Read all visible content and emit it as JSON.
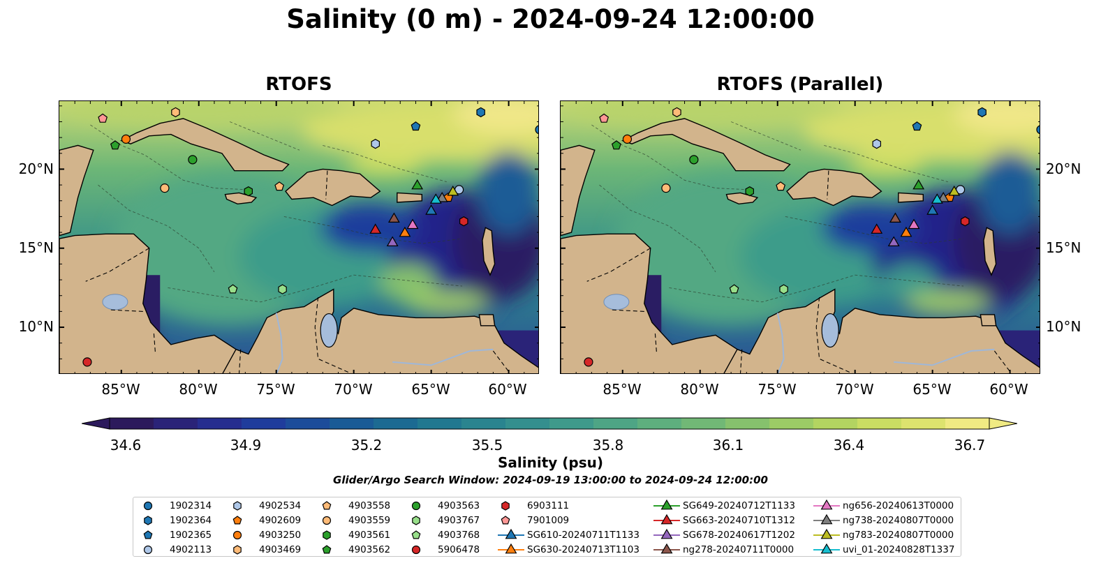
{
  "title": "Salinity (0 m) - 2024-09-24 12:00:00",
  "panels": [
    {
      "id": "left",
      "title": "RTOFS"
    },
    {
      "id": "right",
      "title": "RTOFS (Parallel)"
    }
  ],
  "axes": {
    "lat_ticks": [
      "20°N",
      "15°N",
      "10°N"
    ],
    "lon_ticks": [
      "85°W",
      "80°W",
      "75°W",
      "70°W",
      "65°W",
      "60°W"
    ]
  },
  "colorbar": {
    "label": "Salinity (psu)",
    "ticks": [
      "34.6",
      "34.9",
      "35.2",
      "35.5",
      "35.8",
      "36.1",
      "36.4",
      "36.7"
    ],
    "colors": [
      "#2c1a5c",
      "#2a2378",
      "#262d8f",
      "#1f3c9c",
      "#1c4c9a",
      "#1a5b96",
      "#1c6a92",
      "#217890",
      "#2a848f",
      "#348f8e",
      "#3f9a8b",
      "#4ea585",
      "#5eaf7e",
      "#71b876",
      "#86c16d",
      "#9ccb66",
      "#b3d461",
      "#cadd63",
      "#ddE36e",
      "#f0ea83"
    ]
  },
  "window_label": "Glider/Argo Search Window: 2024-09-19 13:00:00 to 2024-09-24 12:00:00",
  "legend": [
    {
      "label": "1902314",
      "marker": "circle",
      "color": "#1f77b4"
    },
    {
      "label": "1902364",
      "marker": "hexagon",
      "color": "#1f77b4"
    },
    {
      "label": "1902365",
      "marker": "pentagon",
      "color": "#1f77b4"
    },
    {
      "label": "4902113",
      "marker": "circle",
      "color": "#aec7e8"
    },
    {
      "label": "4902534",
      "marker": "hexagon",
      "color": "#aec7e8"
    },
    {
      "label": "4902609",
      "marker": "pentagon",
      "color": "#ff7f0e"
    },
    {
      "label": "4903250",
      "marker": "circle",
      "color": "#ff7f0e"
    },
    {
      "label": "4903469",
      "marker": "hexagon",
      "color": "#ffbb78"
    },
    {
      "label": "4903558",
      "marker": "pentagon",
      "color": "#ffbb78"
    },
    {
      "label": "4903559",
      "marker": "circle",
      "color": "#ffbb78"
    },
    {
      "label": "4903561",
      "marker": "hexagon",
      "color": "#2ca02c"
    },
    {
      "label": "4903562",
      "marker": "pentagon",
      "color": "#2ca02c"
    },
    {
      "label": "4903563",
      "marker": "circle",
      "color": "#2ca02c"
    },
    {
      "label": "4903767",
      "marker": "hexagon",
      "color": "#98df8a"
    },
    {
      "label": "4903768",
      "marker": "pentagon",
      "color": "#98df8a"
    },
    {
      "label": "5906478",
      "marker": "circle",
      "color": "#d62728"
    },
    {
      "label": "6903111",
      "marker": "hexagon",
      "color": "#d62728"
    },
    {
      "label": "7901009",
      "marker": "pentagon",
      "color": "#ff9896"
    },
    {
      "label": "SG610-20240711T1133",
      "marker": "triangle-line",
      "color": "#1f77b4"
    },
    {
      "label": "SG630-20240713T1103",
      "marker": "triangle-line",
      "color": "#ff7f0e"
    },
    {
      "label": "SG649-20240712T1133",
      "marker": "triangle-line",
      "color": "#2ca02c"
    },
    {
      "label": "SG663-20240710T1312",
      "marker": "triangle-line",
      "color": "#d62728"
    },
    {
      "label": "SG678-20240617T1202",
      "marker": "triangle-line",
      "color": "#9467bd"
    },
    {
      "label": "ng278-20240711T0000",
      "marker": "triangle-line",
      "color": "#8c564b"
    },
    {
      "label": "ng656-20240613T0000",
      "marker": "triangle-line",
      "color": "#e377c2"
    },
    {
      "label": "ng738-20240807T0000",
      "marker": "triangle-line",
      "color": "#7f7f7f"
    },
    {
      "label": "ng783-20240807T0000",
      "marker": "triangle-line",
      "color": "#bcbd22"
    },
    {
      "label": "uvi_01-20240828T1337",
      "marker": "triangle-line",
      "color": "#17becf"
    }
  ],
  "map_colors": {
    "land": "#d2b48c",
    "lake": "#a6bddb",
    "deep_low": "#2a1d63",
    "mid": "#2f8c8c",
    "green": "#5fb07a",
    "high": "#f0e788"
  },
  "observations": [
    {
      "id": "1902314",
      "lon": -58.0,
      "lat": 22.5
    },
    {
      "id": "1902364",
      "lon": -61.8,
      "lat": 23.6
    },
    {
      "id": "1902365",
      "lon": -66.0,
      "lat": 22.7
    },
    {
      "id": "4902113",
      "lon": -63.2,
      "lat": 18.7
    },
    {
      "id": "4902534",
      "lon": -68.6,
      "lat": 21.6
    },
    {
      "id": "4902609",
      "lon": -63.9,
      "lat": 18.2
    },
    {
      "id": "4903250",
      "lon": -84.7,
      "lat": 21.9
    },
    {
      "id": "4903469",
      "lon": -81.5,
      "lat": 23.6
    },
    {
      "id": "4903558",
      "lon": -74.8,
      "lat": 18.9
    },
    {
      "id": "4903559",
      "lon": -82.2,
      "lat": 18.8
    },
    {
      "id": "4903561",
      "lon": -76.8,
      "lat": 18.6
    },
    {
      "id": "4903562",
      "lon": -85.4,
      "lat": 21.5
    },
    {
      "id": "4903563",
      "lon": -80.4,
      "lat": 20.6
    },
    {
      "id": "4903767",
      "lon": -74.6,
      "lat": 12.4
    },
    {
      "id": "4903768",
      "lon": -77.8,
      "lat": 12.4
    },
    {
      "id": "5906478",
      "lon": -87.2,
      "lat": 7.8
    },
    {
      "id": "6903111",
      "lon": -62.9,
      "lat": 16.7
    },
    {
      "id": "7901009",
      "lon": -86.2,
      "lat": 23.2
    },
    {
      "id": "SG610-20240711T1133",
      "lon": -65.0,
      "lat": 17.4
    },
    {
      "id": "SG630-20240713T1103",
      "lon": -66.7,
      "lat": 16.0
    },
    {
      "id": "SG649-20240712T1133",
      "lon": -65.9,
      "lat": 19.0
    },
    {
      "id": "SG663-20240710T1312",
      "lon": -68.6,
      "lat": 16.2
    },
    {
      "id": "SG678-20240617T1202",
      "lon": -67.5,
      "lat": 15.4
    },
    {
      "id": "ng278-20240711T0000",
      "lon": -67.4,
      "lat": 16.9
    },
    {
      "id": "ng656-20240613T0000",
      "lon": -66.2,
      "lat": 16.5
    },
    {
      "id": "ng738-20240807T0000",
      "lon": -64.3,
      "lat": 18.2
    },
    {
      "id": "ng783-20240807T0000",
      "lon": -63.6,
      "lat": 18.6
    },
    {
      "id": "uvi_01-20240828T1337",
      "lon": -64.7,
      "lat": 18.1
    }
  ]
}
